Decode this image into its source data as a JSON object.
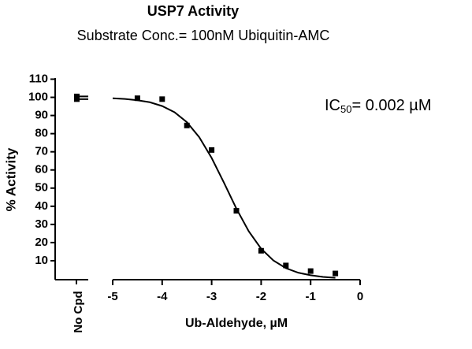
{
  "chart_data": {
    "type": "scatter",
    "title": "USP7 Activity",
    "subtitle": "Substrate Conc.= 100nM Ubiquitin-AMC",
    "xlabel": "Ub-Aldehyde, µM",
    "ylabel": "% Activity",
    "xlim": [
      -5,
      0
    ],
    "ylim": [
      0,
      110
    ],
    "xticks": [
      -5,
      -4,
      -3,
      -2,
      -1,
      0
    ],
    "yticks": [
      10,
      20,
      30,
      40,
      50,
      60,
      70,
      80,
      90,
      100,
      110
    ],
    "control": {
      "label": "No Cpd",
      "values": [
        100.5,
        99
      ]
    },
    "series": [
      {
        "color": "#000000",
        "x": [
          -4.5,
          -4,
          -3.5,
          -3,
          -2.5,
          -2,
          -1.5,
          -1,
          -0.5
        ],
        "values": [
          99.5,
          99,
          84.5,
          71,
          37.5,
          15.5,
          7.4,
          4.3,
          3
        ]
      }
    ],
    "fit": {
      "color": "#000000",
      "x": [
        -5,
        -4.75,
        -4.5,
        -4.25,
        -4,
        -3.75,
        -3.5,
        -3.25,
        -3,
        -2.75,
        -2.5,
        -2.25,
        -2,
        -1.75,
        -1.5,
        -1.25,
        -1,
        -0.75,
        -0.5
      ],
      "values": [
        99.5,
        99.1,
        98.4,
        97.3,
        95.2,
        91.8,
        86.3,
        78.0,
        66.6,
        52.9,
        38.7,
        26.2,
        16.6,
        10.1,
        5.9,
        3.4,
        2.0,
        1.1,
        0.6
      ]
    },
    "annotation": {
      "text": "IC",
      "sub": "50",
      "rest": "= 0.002 µM"
    }
  }
}
